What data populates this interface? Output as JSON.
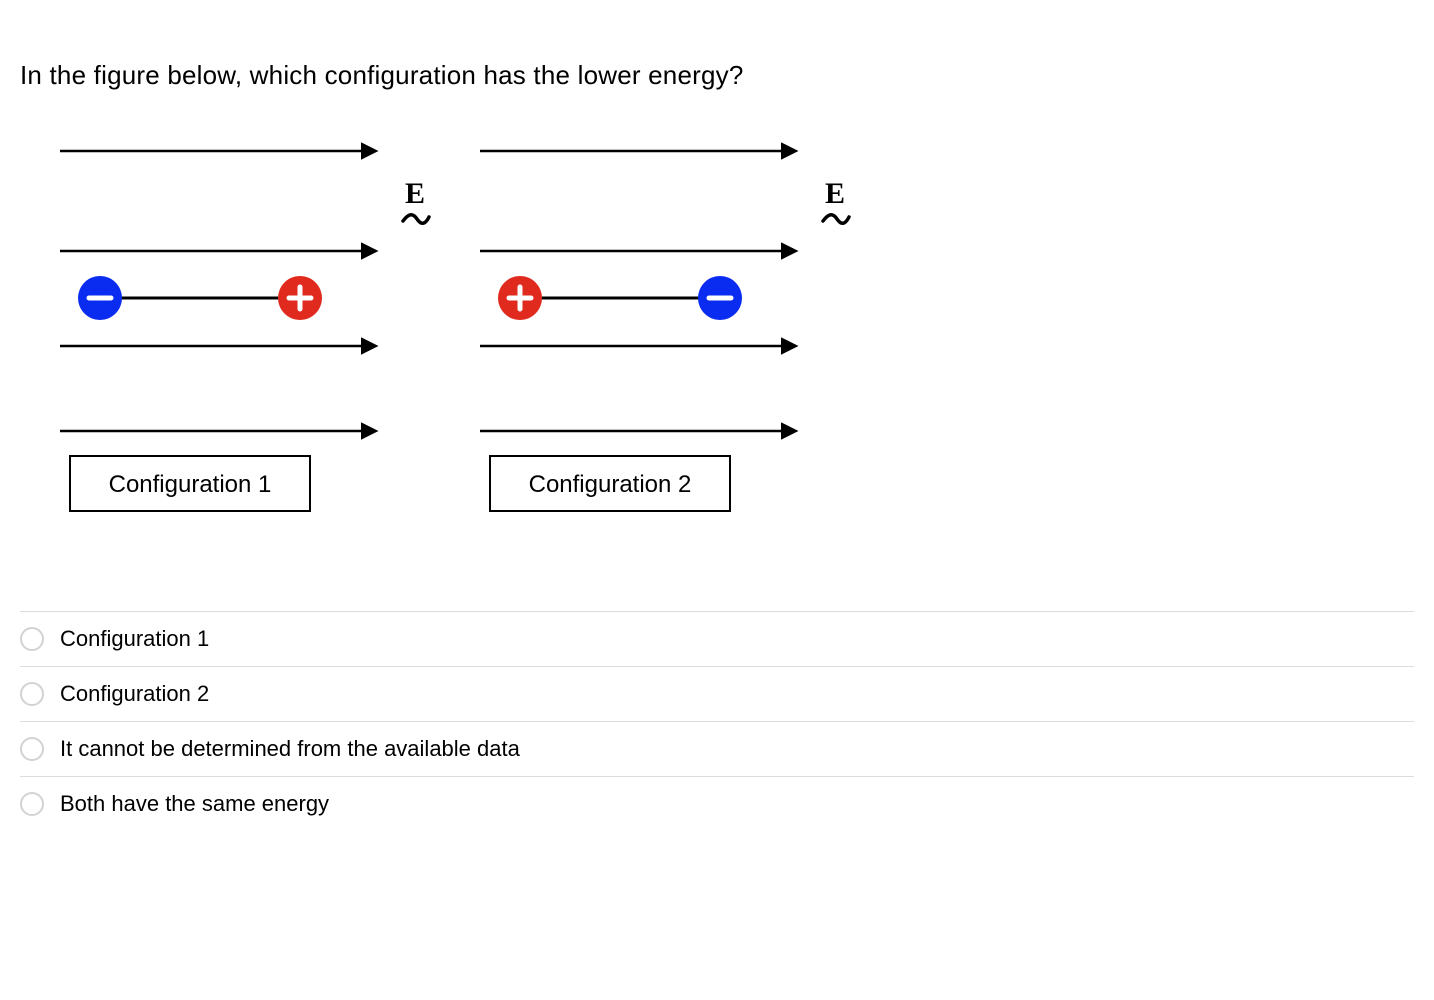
{
  "question": "In the figure below, which configuration has the lower energy?",
  "figure": {
    "field_label": "E",
    "arrow_color": "#000000",
    "neg_fill": "#0a2bf0",
    "pos_fill": "#e02a1e",
    "symbol_color": "#ffffff",
    "box_border": "#000000",
    "text_color": "#000000",
    "label_fontsize": 24,
    "field_label_fontsize": 30,
    "config1": {
      "label": "Configuration 1",
      "left_charge": "neg",
      "right_charge": "pos"
    },
    "config2": {
      "label": "Configuration 2",
      "left_charge": "pos",
      "right_charge": "neg"
    }
  },
  "options": [
    {
      "label": "Configuration 1"
    },
    {
      "label": "Configuration 2"
    },
    {
      "label": "It cannot be determined from the available data"
    },
    {
      "label": "Both have the same energy"
    }
  ],
  "colors": {
    "text": "#000000",
    "divider": "#dcdcdc",
    "radio_border": "#d2d2d2",
    "background": "#ffffff"
  }
}
